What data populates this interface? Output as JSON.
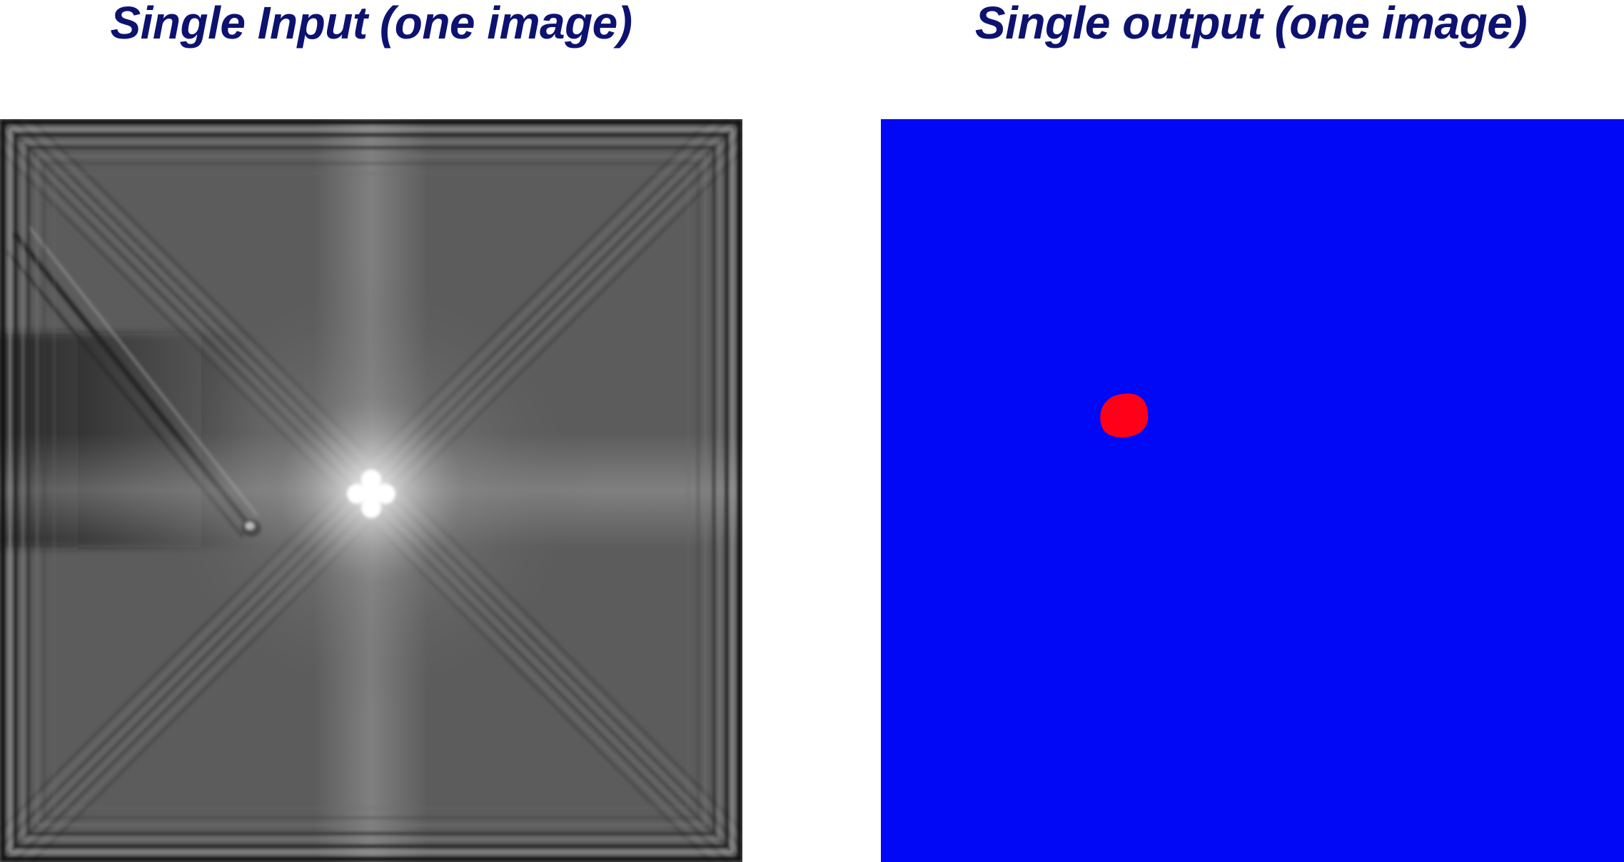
{
  "titles": {
    "input": "Single Input (one image)",
    "output": "Single output (one image)"
  },
  "colors": {
    "title": "#0d1270",
    "output_background": "#0008f5",
    "output_blob": "#ff0018"
  }
}
